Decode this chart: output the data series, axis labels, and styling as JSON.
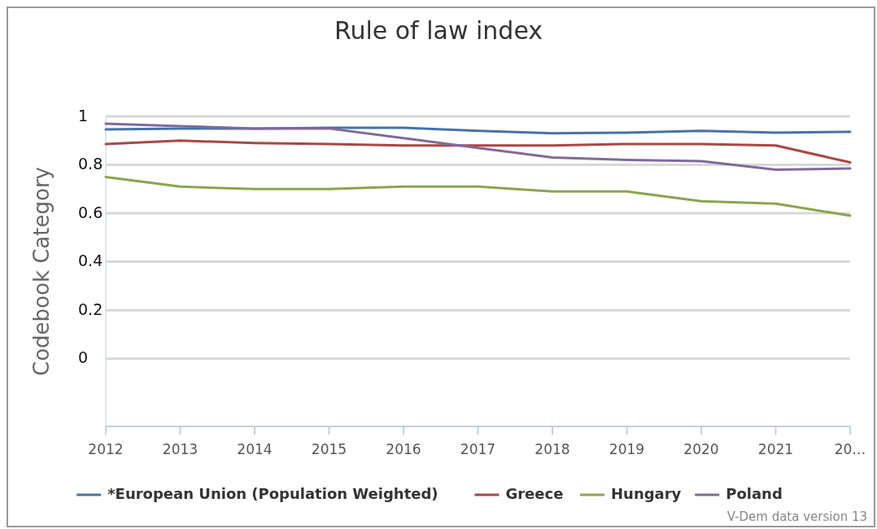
{
  "chart_data": {
    "type": "line",
    "title": "Rule of law index",
    "ylabel": "Codebook Category",
    "x": [
      2012,
      2013,
      2014,
      2015,
      2016,
      2017,
      2018,
      2019,
      2020,
      2021,
      2022
    ],
    "xlim": [
      2012,
      2022
    ],
    "xticks": [
      2012,
      2013,
      2014,
      2015,
      2016,
      2017,
      2018,
      2019,
      2020,
      2021,
      {
        "value": 2022,
        "label": "20…"
      }
    ],
    "ylim": [
      -0.28,
      1
    ],
    "yticks": [
      0,
      0.2,
      0.4,
      0.6,
      0.8,
      1
    ],
    "grid": "y",
    "legend": "bottom",
    "marker": "none",
    "line_style": "solid",
    "series": [
      {
        "name": "*European Union (Population Weighted)",
        "color": "#4572a7",
        "values": [
          0.946,
          0.95,
          0.95,
          0.953,
          0.953,
          0.94,
          0.93,
          0.933,
          0.94,
          0.933,
          0.936
        ]
      },
      {
        "name": "Greece",
        "color": "#aa4643",
        "values": [
          0.886,
          0.9,
          0.89,
          0.886,
          0.88,
          0.88,
          0.88,
          0.886,
          0.886,
          0.88,
          0.81
        ]
      },
      {
        "name": "Hungary",
        "color": "#89a54e",
        "values": [
          0.75,
          0.71,
          0.7,
          0.7,
          0.71,
          0.71,
          0.69,
          0.69,
          0.65,
          0.64,
          0.59
        ]
      },
      {
        "name": "Poland",
        "color": "#80699b",
        "values": [
          0.97,
          0.96,
          0.95,
          0.95,
          0.91,
          0.87,
          0.83,
          0.82,
          0.815,
          0.78,
          0.785
        ]
      }
    ],
    "annotations": [
      "V-Dem data version 13"
    ]
  }
}
